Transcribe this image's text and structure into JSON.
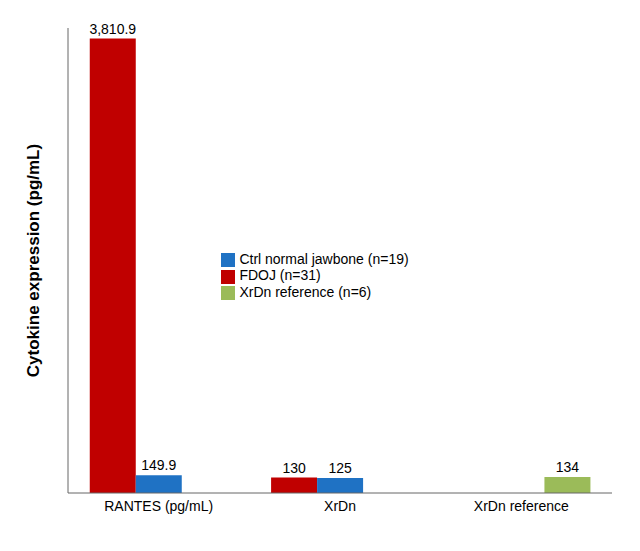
{
  "chart_data": {
    "type": "bar",
    "y_label": "Cytokine expression (pg/mL)",
    "categories": [
      "RANTES (pg/mL)",
      "XrDn",
      "XrDn reference"
    ],
    "series": [
      {
        "name": "FDOJ (n=31)",
        "color": "#c00000",
        "values": [
          3810.9,
          130,
          null
        ],
        "value_labels": [
          "3,810.9",
          "130",
          null
        ]
      },
      {
        "name": "Ctrl normal jawbone (n=19)",
        "color": "#1f72c4",
        "values": [
          149.9,
          125,
          null
        ],
        "value_labels": [
          "149.9",
          "125",
          null
        ]
      },
      {
        "name": "XrDn reference  (n=6)",
        "color": "#9bbb59",
        "values": [
          null,
          null,
          134
        ],
        "value_labels": [
          null,
          null,
          "134"
        ]
      }
    ],
    "ylim": [
      0,
      3900
    ],
    "yticks": [],
    "grid": false,
    "legend": "center",
    "data_labels": true,
    "tick_labels": "x"
  }
}
